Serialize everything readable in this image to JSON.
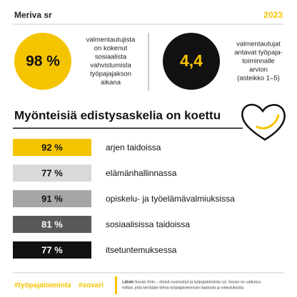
{
  "header": {
    "title": "Meriva sr",
    "year": "2023"
  },
  "stats": [
    {
      "value": "98 %",
      "lines": [
        "valmentautujista",
        "on kokenut",
        "sosiaalista",
        "vahvistumista",
        "työpajajakson",
        "aikana"
      ]
    },
    {
      "value": "4,4",
      "lines": [
        "valmentautujat",
        "antavat työpaja-",
        "toiminnalle",
        "arvion",
        "(asteikko 1–5)"
      ]
    }
  ],
  "heading": "Myönteisiä edistysaskelia on koettu",
  "rows": [
    {
      "value": "92 %",
      "label": "arjen taidoissa"
    },
    {
      "value": "77 %",
      "label": "elämänhallinnassa"
    },
    {
      "value": "91 %",
      "label": "opiskelu- ja työelämävalmiuksissa"
    },
    {
      "value": "81 %",
      "label": "sosiaalisissa taidoissa"
    },
    {
      "value": "77 %",
      "label": "itsetuntemuksessa"
    }
  ],
  "footer": {
    "tags": [
      "#työpajatoiminta",
      "#sovari"
    ],
    "source_label": "Lähde:",
    "source_lines": [
      "Sovari (Into – etsivä nuorisotyö ja työpajatoiminta ry). Sovari on vaikutus-",
      "mittari, jolla kerätään tietoa työpajatoiminnan laadusta ja vaikutuksista."
    ]
  }
}
